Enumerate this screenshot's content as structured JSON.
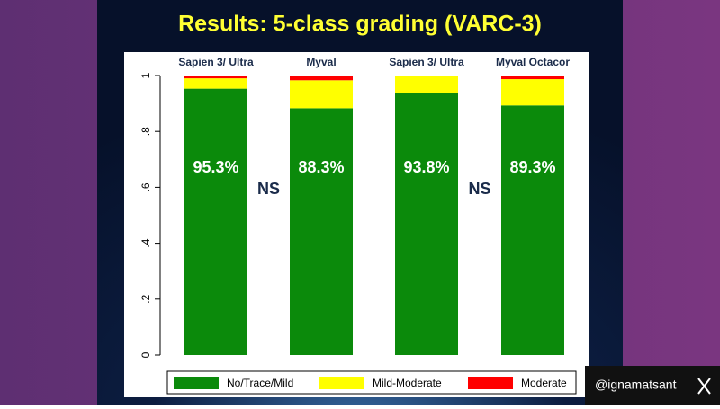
{
  "chart_data": {
    "type": "stacked_bar",
    "title": "Results: 5-class grading (VARC-3)",
    "categories": [
      "Sapien 3/ Ultra",
      "Myval",
      "Sapien 3/ Ultra",
      "Myval Octacor"
    ],
    "series": [
      {
        "name": "No/Trace/Mild",
        "color": "#0b8a0b",
        "values": [
          0.953,
          0.883,
          0.938,
          0.893
        ],
        "value_labels": [
          "95.3%",
          "88.3%",
          "93.8%",
          "89.3%"
        ]
      },
      {
        "name": "Mild-Moderate",
        "color": "#ffff00",
        "values": [
          0.037,
          0.1,
          0.062,
          0.094
        ]
      },
      {
        "name": "Moderate",
        "color": "#ff0000",
        "values": [
          0.01,
          0.017,
          0,
          0.013
        ]
      }
    ],
    "annotations": [
      "NS",
      "NS"
    ],
    "ylim": [
      0,
      1
    ],
    "yticks": [
      0,
      {
        "value": 0.2,
        "label": ".2"
      },
      {
        "value": 0.4,
        "label": ".4"
      },
      {
        "value": 0.6,
        "label": ".6"
      },
      {
        "value": 0.8,
        "label": ".8"
      },
      1
    ]
  },
  "watermark": "@ignamatsant"
}
